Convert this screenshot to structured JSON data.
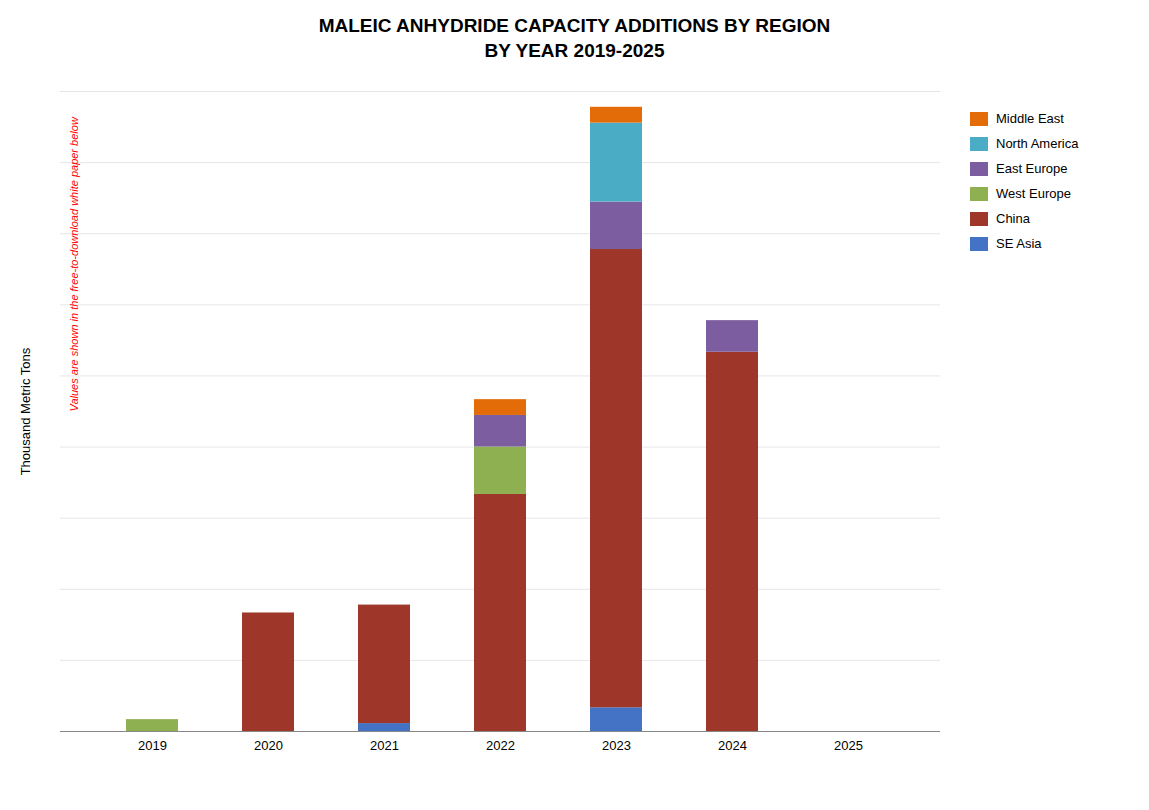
{
  "chart_data": {
    "type": "bar",
    "stacked": true,
    "title": "MALEIC ANHYDRIDE CAPACITY ADDITIONS BY REGION\nBY YEAR 2019-2025",
    "ylabel": "Thousand Metric Tons",
    "annotation": "Values are shown in the free-to-download white paper below",
    "categories": [
      "2019",
      "2020",
      "2021",
      "2022",
      "2023",
      "2024",
      "2025"
    ],
    "series": [
      {
        "name": "SE Asia",
        "color": "#4472C4",
        "values": [
          0,
          0,
          10,
          0,
          30,
          0,
          0
        ]
      },
      {
        "name": "China",
        "color": "#9E3629",
        "values": [
          0,
          150,
          150,
          300,
          580,
          480,
          0
        ]
      },
      {
        "name": "West Europe",
        "color": "#8FB050",
        "values": [
          15,
          0,
          0,
          60,
          0,
          0,
          0
        ]
      },
      {
        "name": "East Europe",
        "color": "#7C5EA0",
        "values": [
          0,
          0,
          0,
          40,
          60,
          40,
          0
        ]
      },
      {
        "name": "North America",
        "color": "#4BACC6",
        "values": [
          0,
          0,
          0,
          0,
          100,
          0,
          0
        ]
      },
      {
        "name": "Middle East",
        "color": "#E36C09",
        "values": [
          0,
          0,
          0,
          20,
          20,
          0,
          0
        ]
      }
    ],
    "ylim": [
      0,
      810
    ],
    "yticks": [
      0,
      90,
      180,
      270,
      360,
      450,
      540,
      630,
      720,
      810
    ],
    "grid": true,
    "legend": "upper right",
    "tick_labels": "x"
  }
}
